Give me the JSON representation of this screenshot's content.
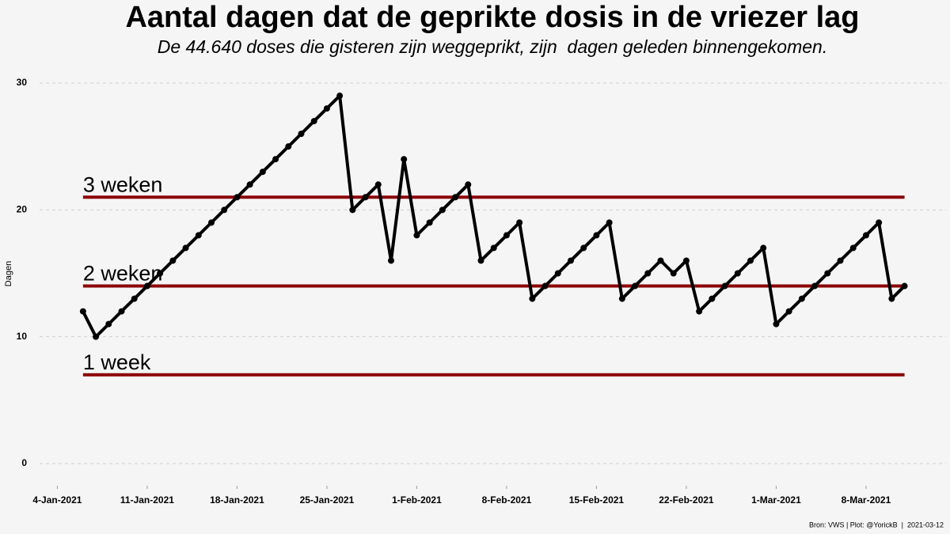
{
  "chart_data": {
    "type": "line",
    "title": "Aantal dagen dat de geprikte dosis in de vriezer lag",
    "subtitle": "De 44.640 doses die gisteren zijn weggeprikt, zijn  dagen geleden binnengekomen.",
    "y_label": "Dagen",
    "caption": "Bron: VWS | Plot: @YorickB  |  2021-03-12",
    "x": [
      "2021-01-06",
      "2021-01-07",
      "2021-01-08",
      "2021-01-09",
      "2021-01-10",
      "2021-01-11",
      "2021-01-12",
      "2021-01-13",
      "2021-01-14",
      "2021-01-15",
      "2021-01-16",
      "2021-01-17",
      "2021-01-18",
      "2021-01-19",
      "2021-01-20",
      "2021-01-21",
      "2021-01-22",
      "2021-01-23",
      "2021-01-24",
      "2021-01-25",
      "2021-01-26",
      "2021-01-27",
      "2021-01-28",
      "2021-01-29",
      "2021-01-30",
      "2021-01-31",
      "2021-02-01",
      "2021-02-02",
      "2021-02-03",
      "2021-02-04",
      "2021-02-05",
      "2021-02-06",
      "2021-02-07",
      "2021-02-08",
      "2021-02-09",
      "2021-02-10",
      "2021-02-11",
      "2021-02-12",
      "2021-02-13",
      "2021-02-14",
      "2021-02-15",
      "2021-02-16",
      "2021-02-17",
      "2021-02-18",
      "2021-02-19",
      "2021-02-20",
      "2021-02-21",
      "2021-02-22",
      "2021-02-23",
      "2021-02-24",
      "2021-02-25",
      "2021-02-26",
      "2021-02-27",
      "2021-02-28",
      "2021-03-01",
      "2021-03-02",
      "2021-03-03",
      "2021-03-04",
      "2021-03-05",
      "2021-03-06",
      "2021-03-07",
      "2021-03-08",
      "2021-03-09",
      "2021-03-10",
      "2021-03-11"
    ],
    "series": [
      {
        "name": "Dagen",
        "color": "#000000",
        "values": [
          12,
          10,
          11,
          12,
          13,
          14,
          15,
          16,
          17,
          18,
          19,
          20,
          21,
          22,
          23,
          24,
          25,
          26,
          27,
          28,
          29,
          20,
          21,
          22,
          16,
          24,
          18,
          19,
          20,
          21,
          22,
          16,
          17,
          18,
          19,
          13,
          14,
          15,
          16,
          17,
          18,
          19,
          13,
          14,
          15,
          16,
          15,
          16,
          12,
          13,
          14,
          15,
          16,
          17,
          11,
          12,
          13,
          14,
          15,
          16,
          17,
          18,
          19,
          13,
          14
        ]
      }
    ],
    "reference_lines": [
      {
        "value": 21,
        "label": "3 weken"
      },
      {
        "value": 14,
        "label": "2 weken"
      },
      {
        "value": 7,
        "label": "1 week"
      }
    ],
    "reference_color": "#8b0000",
    "xlim": [
      "2021-01-02",
      "2021-03-13"
    ],
    "xticks": [
      {
        "value": "2021-01-04",
        "label": "4-Jan-2021"
      },
      {
        "value": "2021-01-11",
        "label": "11-Jan-2021"
      },
      {
        "value": "2021-01-18",
        "label": "18-Jan-2021"
      },
      {
        "value": "2021-01-25",
        "label": "25-Jan-2021"
      },
      {
        "value": "2021-02-01",
        "label": "1-Feb-2021"
      },
      {
        "value": "2021-02-08",
        "label": "8-Feb-2021"
      },
      {
        "value": "2021-02-15",
        "label": "15-Feb-2021"
      },
      {
        "value": "2021-02-22",
        "label": "22-Feb-2021"
      },
      {
        "value": "2021-03-01",
        "label": "1-Mar-2021"
      },
      {
        "value": "2021-03-08",
        "label": "8-Mar-2021"
      }
    ],
    "ylim": [
      0,
      30
    ],
    "yticks": [
      0,
      10,
      20,
      30
    ],
    "grid": true
  }
}
